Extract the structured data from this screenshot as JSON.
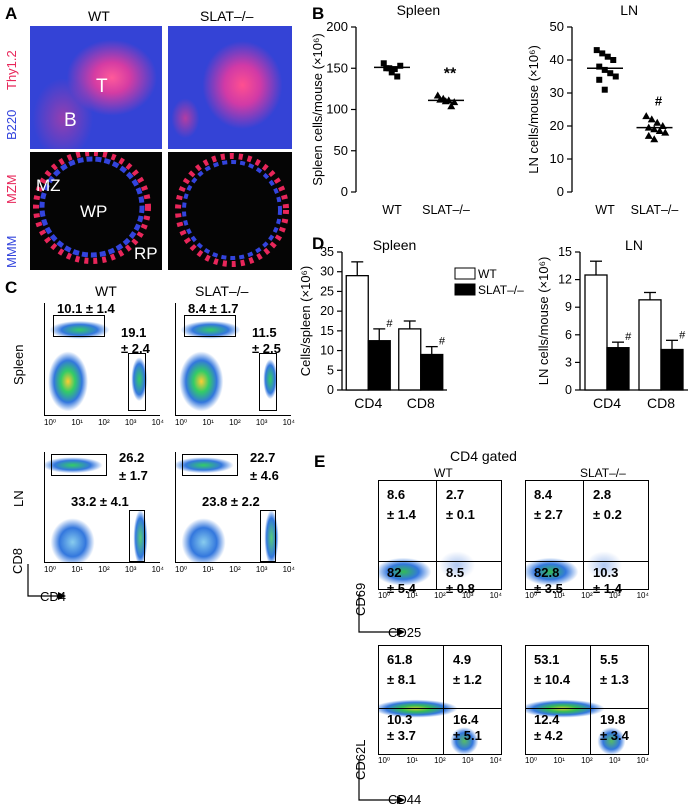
{
  "panelA": {
    "letter": "A",
    "wt": "WT",
    "ko": "SLAT–/–",
    "stain_top_1": "Thy1.2",
    "stain_top_2": "B220",
    "stain_bot_1": "MZM",
    "stain_bot_2": "MMM",
    "label_T": "T",
    "label_B": "B",
    "label_MZ": "MZ",
    "label_WP": "WP",
    "label_RP": "RP",
    "colors": {
      "red": "#e8265a",
      "blue": "#3344dd"
    }
  },
  "panelB": {
    "letter": "B",
    "sig_spleen": "**",
    "sig_ln": "#"
  },
  "panelC": {
    "letter": "C",
    "wt": "WT",
    "ko": "SLAT–/–",
    "row1": "Spleen",
    "row2": "LN",
    "ylab": "CD8",
    "xlab": "CD4",
    "stats": {
      "spleen_wt_cd8": "10.1 ± 1.4",
      "spleen_wt_cd4_a": "19.1",
      "spleen_wt_cd4_b": "± 2.4",
      "spleen_ko_cd8": "8.4 ± 1.7",
      "spleen_ko_cd4_a": "11.5",
      "spleen_ko_cd4_b": "± 2.5",
      "ln_wt_cd8_a": "26.2",
      "ln_wt_cd8_b": "± 1.7",
      "ln_wt_cd4": "33.2 ± 4.1",
      "ln_ko_cd8_a": "22.7",
      "ln_ko_cd8_b": "± 4.6",
      "ln_ko_cd4": "23.8 ± 2.2"
    }
  },
  "panelD": {
    "letter": "D",
    "legend_wt": "WT",
    "legend_ko": "SLAT–/–",
    "sig": "#"
  },
  "panelE": {
    "letter": "E",
    "title": "CD4 gated",
    "wt": "WT",
    "ko": "SLAT–/–",
    "row1_ylab": "CD69",
    "row1_xlab": "CD25",
    "row2_ylab": "CD62L",
    "row2_xlab": "CD44",
    "q": {
      "wt1": [
        "8.6",
        "± 1.4",
        "2.7",
        "± 0.1",
        "82",
        "± 5.4",
        "8.5",
        "± 0.8"
      ],
      "ko1": [
        "8.4",
        "± 2.7",
        "2.8",
        "± 0.2",
        "82.8",
        "± 3.5",
        "10.3",
        "± 1.4"
      ],
      "wt2": [
        "61.8",
        "± 8.1",
        "4.9",
        "± 1.2",
        "10.3",
        "± 3.7",
        "16.4",
        "± 5.1"
      ],
      "ko2": [
        "53.1",
        "± 10.4",
        "5.5",
        "± 1.3",
        "12.4",
        "± 4.2",
        "19.8",
        "± 3.4"
      ]
    }
  },
  "ticks_flow": [
    "10⁰",
    "10¹",
    "10²",
    "10³",
    "10⁴"
  ],
  "chart_data": [
    {
      "type": "scatter",
      "title": "Spleen",
      "ylabel": "Spleen cells/mouse (×10⁶)",
      "categories": [
        "WT",
        "SLAT–/–"
      ],
      "ylim": [
        0,
        200
      ],
      "yticks": [
        0,
        50,
        100,
        150,
        200
      ],
      "series": [
        {
          "name": "WT",
          "values": [
            156,
            150,
            149,
            153,
            150,
            145,
            140
          ],
          "mean": 151
        },
        {
          "name": "SLAT–/–",
          "values": [
            117,
            113,
            111,
            109,
            112,
            110,
            104
          ],
          "mean": 111
        }
      ]
    },
    {
      "type": "scatter",
      "title": "LN",
      "ylabel": "LN cells/mouse (×10⁶)",
      "categories": [
        "WT",
        "SLAT–/–"
      ],
      "ylim": [
        0,
        50
      ],
      "yticks": [
        0,
        10,
        20,
        30,
        40,
        50
      ],
      "series": [
        {
          "name": "WT",
          "values": [
            43,
            42,
            41,
            40,
            38,
            37,
            36,
            35,
            34,
            31
          ],
          "mean": 37.5
        },
        {
          "name": "SLAT–/–",
          "values": [
            23,
            22,
            21,
            20,
            19.5,
            19,
            18.5,
            18,
            17,
            16
          ],
          "mean": 19.5
        }
      ]
    },
    {
      "type": "bar",
      "title": "Spleen",
      "ylabel": "Cells/spleen (×10⁶)",
      "categories": [
        "CD4",
        "CD8"
      ],
      "ylim": [
        0,
        35
      ],
      "yticks": [
        0,
        5,
        10,
        15,
        20,
        25,
        30,
        35
      ],
      "series": [
        {
          "name": "WT",
          "values": [
            29,
            15.5
          ],
          "errors": [
            3.5,
            2
          ]
        },
        {
          "name": "SLAT–/–",
          "values": [
            12.5,
            9
          ],
          "errors": [
            3,
            2
          ]
        }
      ]
    },
    {
      "type": "bar",
      "title": "LN",
      "ylabel": "LN cells/mouse (×10⁶)",
      "categories": [
        "CD4",
        "CD8"
      ],
      "ylim": [
        0,
        15
      ],
      "yticks": [
        0,
        3,
        6,
        9,
        12,
        15
      ],
      "series": [
        {
          "name": "WT",
          "values": [
            12.5,
            9.8
          ],
          "errors": [
            1.5,
            0.8
          ]
        },
        {
          "name": "SLAT–/–",
          "values": [
            4.6,
            4.4
          ],
          "errors": [
            0.6,
            1
          ]
        }
      ]
    }
  ]
}
